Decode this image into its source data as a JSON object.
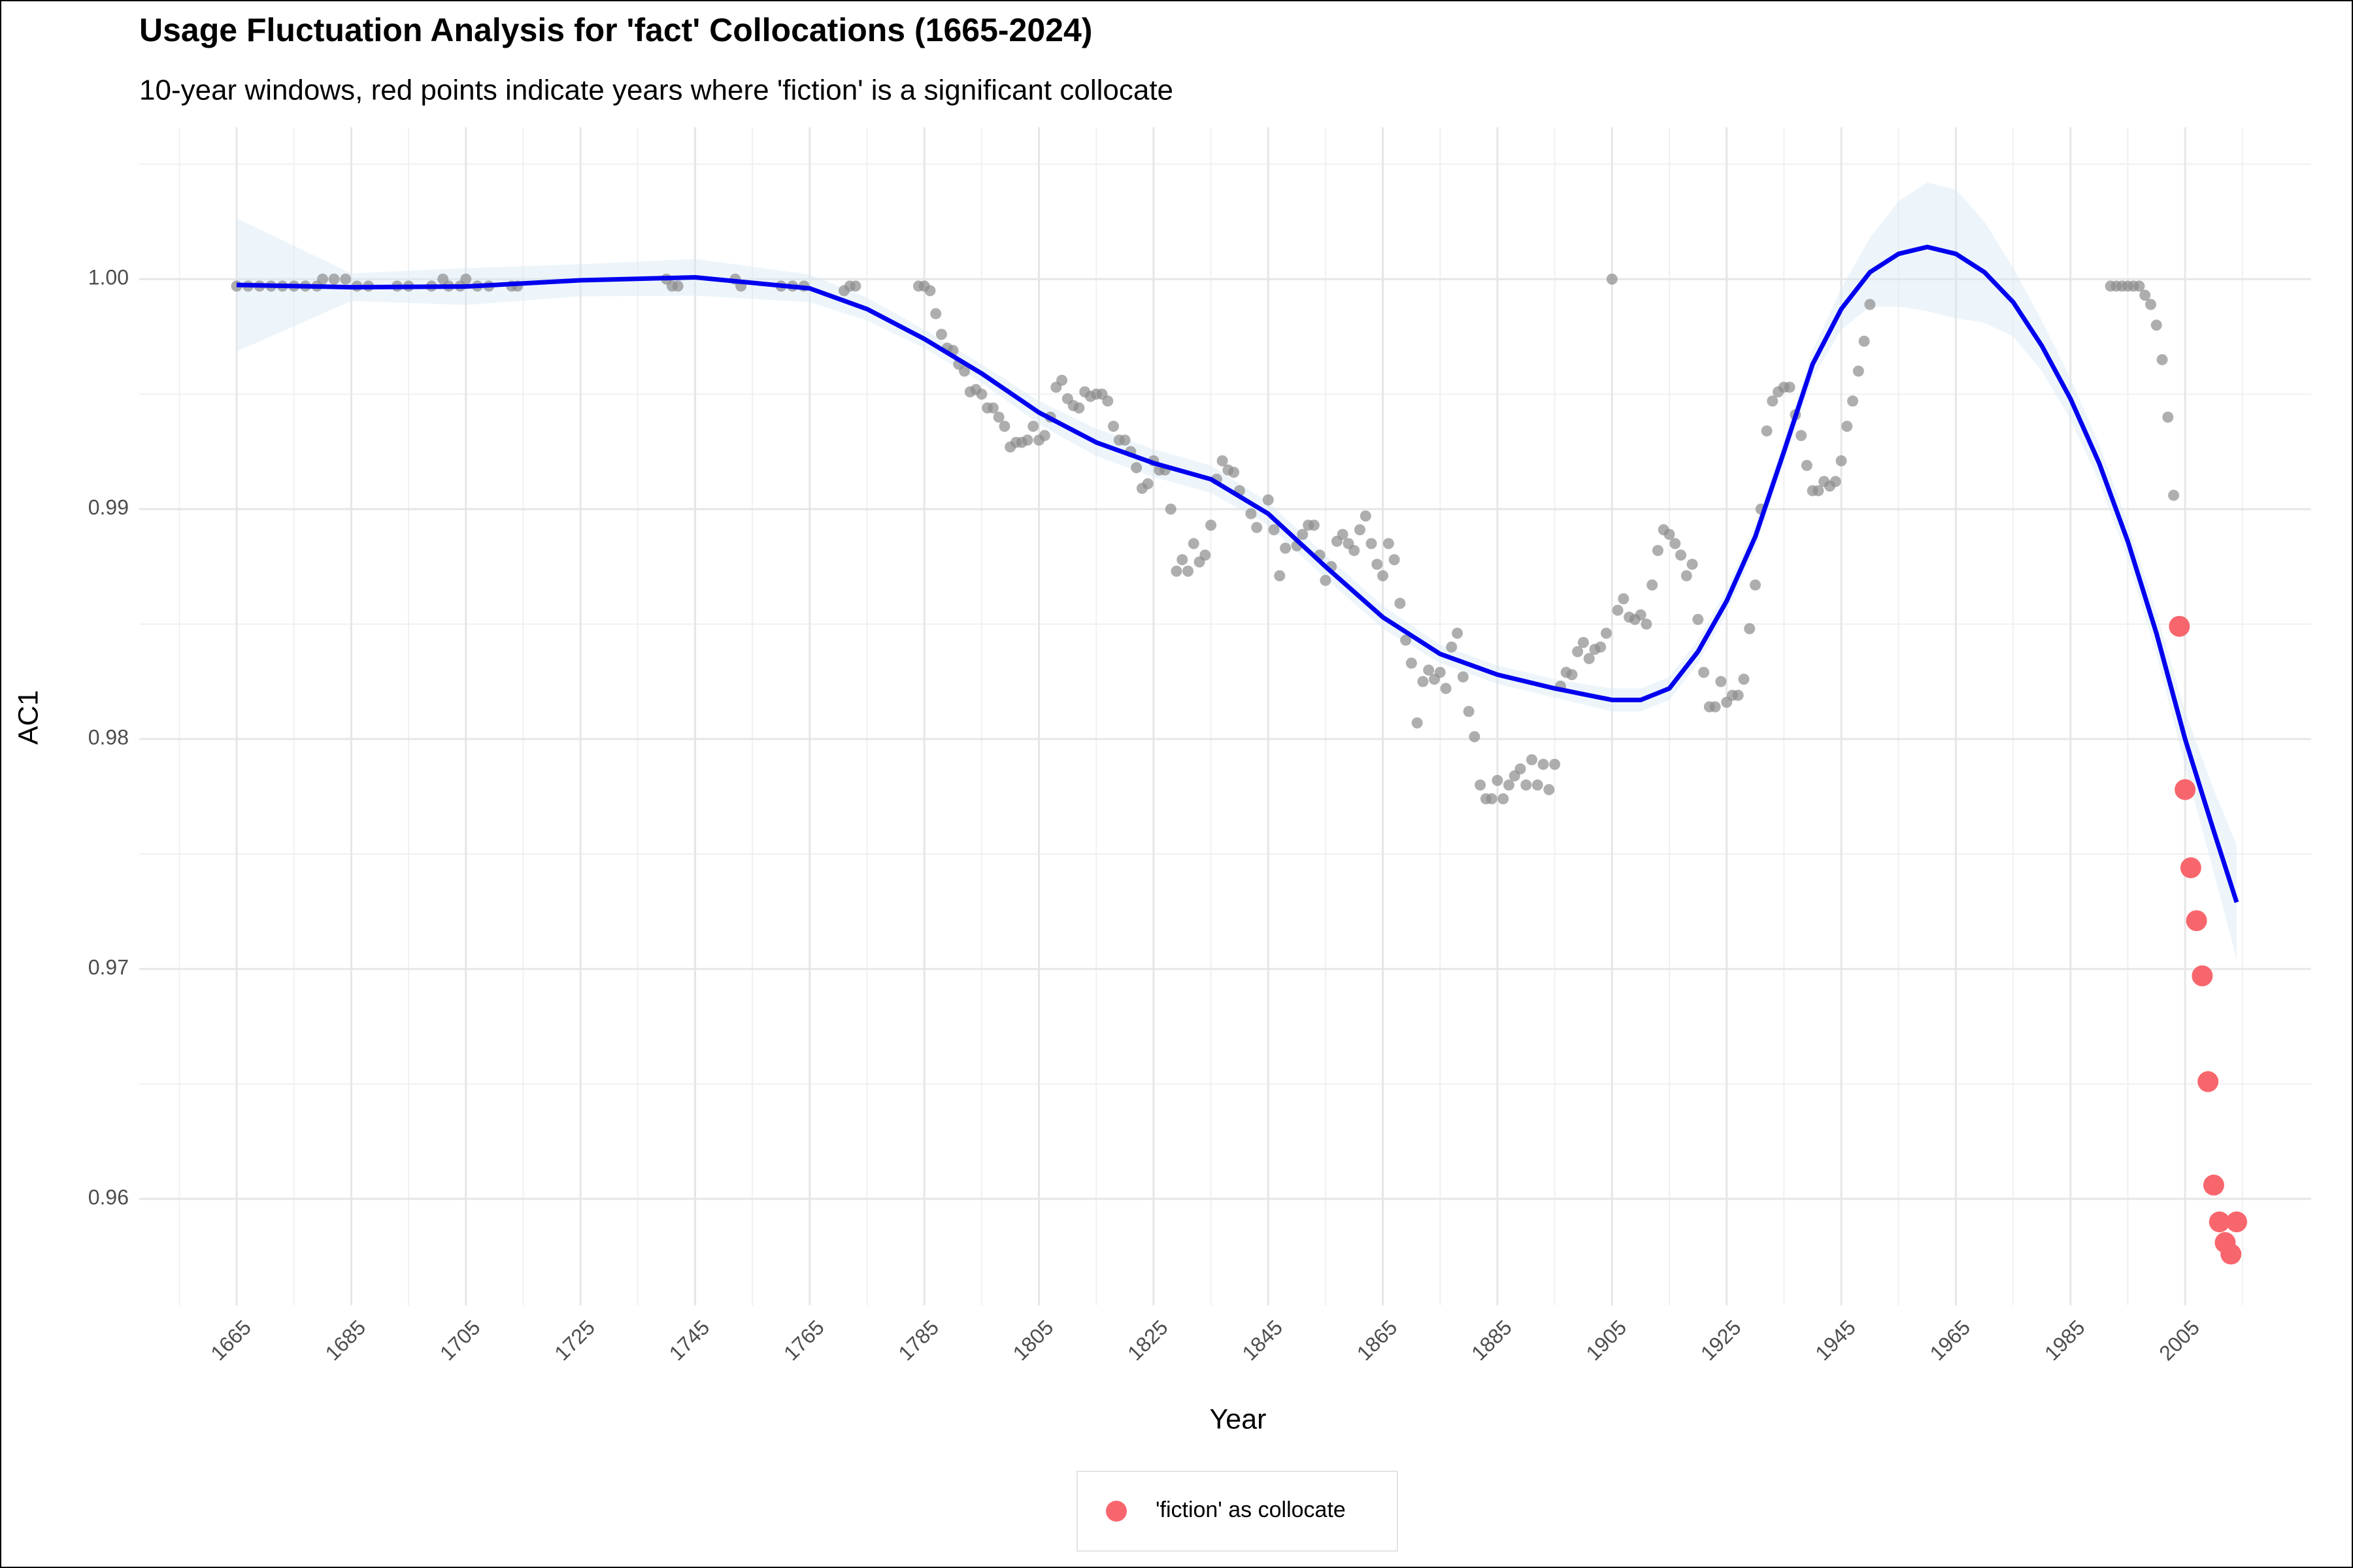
{
  "chart_data": {
    "type": "scatter",
    "title": "Usage Fluctuation Analysis for 'fact' Collocations (1665-2024)",
    "subtitle": "10-year windows, red points indicate years where 'fiction' is a significant collocate",
    "x_label": "Year",
    "y_label": "AC1",
    "xlim": [
      1648,
      2027
    ],
    "ylim": [
      0.95537,
      1.0066
    ],
    "xticks": [
      1665,
      1685,
      1705,
      1725,
      1745,
      1765,
      1785,
      1805,
      1825,
      1845,
      1865,
      1885,
      1905,
      1925,
      1945,
      1965,
      1985,
      2005
    ],
    "yticks": [
      0.96,
      0.97,
      0.98,
      0.99,
      {
        "value": 1,
        "label": "1.00"
      }
    ],
    "grid": true,
    "legend": "bottom",
    "series": [
      {
        "color": "#8c8c8c",
        "x": [
          1665,
          1667,
          1669,
          1671,
          1673,
          1675,
          1677,
          1679,
          1680,
          1682,
          1684,
          1686,
          1688,
          1693,
          1695,
          1699,
          1701,
          1702,
          1704,
          1705,
          1707,
          1709,
          1713,
          1714,
          1740,
          1741,
          1742,
          1752,
          1753,
          1760,
          1762,
          1764,
          1771,
          1772,
          1773,
          1784,
          1785,
          1786,
          1787,
          1788,
          1789,
          1790,
          1791,
          1792,
          1793,
          1794,
          1795,
          1796,
          1797,
          1798,
          1799,
          1800,
          1801,
          1802,
          1803,
          1804,
          1805,
          1806,
          1807,
          1808,
          1809,
          1810,
          1811,
          1812,
          1813,
          1814,
          1815,
          1816,
          1817,
          1818,
          1819,
          1820,
          1821,
          1822,
          1823,
          1824,
          1825,
          1826,
          1827,
          1828,
          1829,
          1830,
          1831,
          1832,
          1833,
          1834,
          1835,
          1836,
          1837,
          1838,
          1839,
          1840,
          1842,
          1843,
          1845,
          1846,
          1847,
          1848,
          1850,
          1851,
          1852,
          1853,
          1854,
          1855,
          1856,
          1857,
          1858,
          1859,
          1860,
          1861,
          1862,
          1863,
          1864,
          1865,
          1866,
          1867,
          1868,
          1869,
          1870,
          1871,
          1872,
          1873,
          1874,
          1875,
          1876,
          1877,
          1878,
          1879,
          1880,
          1881,
          1882,
          1883,
          1884,
          1885,
          1886,
          1887,
          1888,
          1889,
          1890,
          1891,
          1892,
          1893,
          1894,
          1895,
          1896,
          1897,
          1898,
          1899,
          1900,
          1901,
          1902,
          1903,
          1904,
          1905,
          1906,
          1907,
          1908,
          1909,
          1910,
          1911,
          1912,
          1913,
          1914,
          1915,
          1916,
          1917,
          1918,
          1919,
          1920,
          1921,
          1922,
          1923,
          1924,
          1925,
          1926,
          1927,
          1928,
          1929,
          1930,
          1931,
          1932,
          1933,
          1934,
          1935,
          1936,
          1937,
          1938,
          1939,
          1940,
          1941,
          1942,
          1943,
          1944,
          1945,
          1946,
          1947,
          1948,
          1949,
          1950,
          1992,
          1993,
          1994,
          1995,
          1996,
          1997,
          1998,
          1999,
          2000,
          2001,
          2002,
          2003
        ],
        "values": [
          0.9997,
          0.9997,
          0.9997,
          0.9997,
          0.9997,
          0.9997,
          0.9997,
          0.9997,
          1,
          1,
          1,
          0.9997,
          0.9997,
          0.9997,
          0.9997,
          0.9997,
          1,
          0.9997,
          0.9997,
          1,
          0.9997,
          0.9997,
          0.9997,
          0.9997,
          1,
          0.9997,
          0.9997,
          1,
          0.9997,
          0.9997,
          0.9997,
          0.9997,
          0.9995,
          0.9997,
          0.9997,
          0.9997,
          0.9997,
          0.9995,
          0.9985,
          0.9976,
          0.997,
          0.9969,
          0.9963,
          0.996,
          0.9951,
          0.9952,
          0.995,
          0.9944,
          0.9944,
          0.994,
          0.9936,
          0.9927,
          0.9929,
          0.9929,
          0.993,
          0.9936,
          0.993,
          0.9932,
          0.994,
          0.9953,
          0.9956,
          0.9948,
          0.9945,
          0.9944,
          0.9951,
          0.9949,
          0.995,
          0.995,
          0.9947,
          0.9936,
          0.993,
          0.993,
          0.9925,
          0.9918,
          0.9909,
          0.9911,
          0.9921,
          0.9917,
          0.9917,
          0.99,
          0.9873,
          0.9878,
          0.9873,
          0.9885,
          0.9877,
          0.988,
          0.9893,
          0.9913,
          0.9921,
          0.9917,
          0.9916,
          0.9908,
          0.9898,
          0.9892,
          0.9904,
          0.9891,
          0.9871,
          0.9883,
          0.9884,
          0.9889,
          0.9893,
          0.9893,
          0.988,
          0.9869,
          0.9875,
          0.9886,
          0.9889,
          0.9885,
          0.9882,
          0.9891,
          0.9897,
          0.9885,
          0.9876,
          0.9871,
          0.9885,
          0.9878,
          0.9859,
          0.9843,
          0.9833,
          0.9807,
          0.9825,
          0.983,
          0.9826,
          0.9829,
          0.9822,
          0.984,
          0.9846,
          0.9827,
          0.9812,
          0.9801,
          0.978,
          0.9774,
          0.9774,
          0.9782,
          0.9774,
          0.978,
          0.9784,
          0.9787,
          0.978,
          0.9791,
          0.978,
          0.9789,
          0.9778,
          0.9789,
          0.9823,
          0.9829,
          0.9828,
          0.9838,
          0.9842,
          0.9835,
          0.9839,
          0.984,
          0.9846,
          1,
          0.9856,
          0.9861,
          0.9853,
          0.9852,
          0.9854,
          0.985,
          0.9867,
          0.9882,
          0.9891,
          0.9889,
          0.9885,
          0.988,
          0.9871,
          0.9876,
          0.9852,
          0.9829,
          0.9814,
          0.9814,
          0.9825,
          0.9816,
          0.9819,
          0.9819,
          0.9826,
          0.9848,
          0.9867,
          0.99,
          0.9934,
          0.9947,
          0.9951,
          0.9953,
          0.9953,
          0.9941,
          0.9932,
          0.9919,
          0.9908,
          0.9908,
          0.9912,
          0.991,
          0.9912,
          0.9921,
          0.9936,
          0.9947,
          0.996,
          0.9973,
          0.9989,
          0.9997,
          0.9997,
          0.9997,
          0.9997,
          0.9997,
          0.9997,
          0.9993,
          0.9989,
          0.998,
          0.9965,
          0.994,
          0.9906
        ]
      },
      {
        "name": "'fiction' as collocate",
        "color": "#f8666d",
        "x": [
          2004,
          2005,
          2006,
          2007,
          2008,
          2009,
          2010,
          2011,
          2012,
          2013,
          2014
        ],
        "values": [
          0.9849,
          0.9778,
          0.9744,
          0.9721,
          0.9697,
          0.9651,
          0.9606,
          0.959,
          0.9581,
          0.9576,
          0.959
        ]
      }
    ],
    "smooth": {
      "color": "#0000ee",
      "band_color": "#d6e9f5",
      "x": [
        1665,
        1685,
        1705,
        1725,
        1745,
        1765,
        1775,
        1785,
        1795,
        1805,
        1815,
        1825,
        1835,
        1845,
        1855,
        1865,
        1875,
        1885,
        1895,
        1905,
        1910,
        1915,
        1920,
        1925,
        1930,
        1935,
        1940,
        1945,
        1950,
        1955,
        1960,
        1965,
        1970,
        1975,
        1980,
        1985,
        1990,
        1995,
        2000,
        2005,
        2010,
        2014
      ],
      "values": [
        0.99975,
        0.99965,
        0.99968,
        0.99995,
        1.00008,
        0.9996,
        0.9987,
        0.9974,
        0.9959,
        0.9942,
        0.9929,
        0.992,
        0.9913,
        0.9898,
        0.9875,
        0.9853,
        0.9837,
        0.9828,
        0.9822,
        0.9817,
        0.9817,
        0.9822,
        0.9838,
        0.986,
        0.9888,
        0.9925,
        0.9963,
        0.9987,
        1.0003,
        1.0011,
        1.0014,
        1.0011,
        1.0003,
        0.999,
        0.9971,
        0.9948,
        0.992,
        0.9886,
        0.9846,
        0.98,
        0.976,
        0.9729
      ],
      "lower": [
        0.99685,
        0.99905,
        0.99888,
        0.99925,
        0.99928,
        0.999,
        0.9982,
        0.997,
        0.9955,
        0.9937,
        0.9923,
        0.9914,
        0.9907,
        0.9893,
        0.987,
        0.9848,
        0.9833,
        0.9824,
        0.9818,
        0.9812,
        0.9812,
        0.9817,
        0.9833,
        0.9855,
        0.9883,
        0.992,
        0.9957,
        0.9978,
        0.9988,
        0.9988,
        0.9986,
        0.9983,
        0.9981,
        0.9975,
        0.996,
        0.9939,
        0.9912,
        0.9878,
        0.9837,
        0.9788,
        0.9742,
        0.9704
      ],
      "upper": [
        1.00265,
        1.00025,
        1.00048,
        1.00065,
        1.00088,
        1.0002,
        0.9992,
        0.9978,
        0.9963,
        0.9947,
        0.9935,
        0.9926,
        0.9919,
        0.9903,
        0.988,
        0.9858,
        0.9841,
        0.9832,
        0.9826,
        0.9822,
        0.9822,
        0.9827,
        0.9843,
        0.9865,
        0.9893,
        0.993,
        0.9969,
        0.9996,
        1.0018,
        1.0034,
        1.0042,
        1.0039,
        1.0025,
        1.0005,
        0.9982,
        0.9957,
        0.9928,
        0.9894,
        0.9855,
        0.9812,
        0.9778,
        0.9754
      ]
    }
  }
}
